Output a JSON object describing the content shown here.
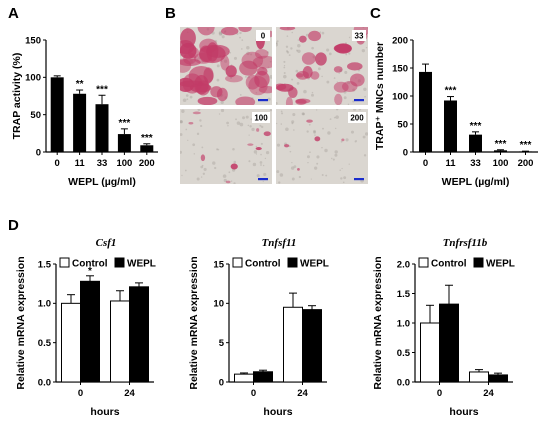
{
  "panels": {
    "A": "A",
    "B": "B",
    "C": "C",
    "D": "D"
  },
  "colors": {
    "bar_black": "#000000",
    "bar_white": "#ffffff",
    "scale_bar": "#1a2ccc",
    "stain_pink": "#c23b67",
    "stain_bg": "#dad6d0"
  },
  "micrographs": [
    {
      "label": "0",
      "density": "high"
    },
    {
      "label": "33",
      "density": "medium"
    },
    {
      "label": "100",
      "density": "low"
    },
    {
      "label": "200",
      "density": "very-low"
    }
  ],
  "legend": {
    "control": "Control",
    "wepl": "WEPL"
  },
  "chart_data": [
    {
      "panel": "A",
      "type": "bar",
      "categories": [
        "0",
        "11",
        "33",
        "100",
        "200"
      ],
      "values": [
        100,
        78,
        64,
        24,
        9
      ],
      "errors": [
        2,
        5,
        12,
        7,
        2
      ],
      "annotations": [
        "",
        "**",
        "***",
        "***",
        "***"
      ],
      "xlabel": "WEPL (µg/ml)",
      "ylabel": "TRAP activity (%)",
      "ylim": [
        0,
        150
      ],
      "yticks": [
        0,
        50,
        100,
        150
      ],
      "grid": false
    },
    {
      "panel": "C",
      "type": "bar",
      "categories": [
        "0",
        "11",
        "33",
        "100",
        "200"
      ],
      "values": [
        143,
        92,
        31,
        3,
        1
      ],
      "errors": [
        14,
        7,
        5,
        1,
        0.5
      ],
      "annotations": [
        "",
        "***",
        "***",
        "***",
        "***"
      ],
      "xlabel": "WEPL (µg/ml)",
      "ylabel": "TRAP⁺ MNCs number",
      "ylim": [
        0,
        200
      ],
      "yticks": [
        0,
        50,
        100,
        150,
        200
      ],
      "grid": false
    },
    {
      "panel": "D1",
      "type": "bar",
      "title": "Csf1",
      "categories": [
        "0",
        "24"
      ],
      "series": [
        {
          "name": "Control",
          "values": [
            1.0,
            1.03
          ],
          "errors": [
            0.11,
            0.13
          ]
        },
        {
          "name": "WEPL",
          "values": [
            1.28,
            1.21
          ],
          "errors": [
            0.07,
            0.05
          ]
        }
      ],
      "annotations": [
        {
          "category": "0",
          "series": "WEPL",
          "text": "*"
        }
      ],
      "xlabel": "hours",
      "ylabel": "Relative mRNA expression",
      "ylim": [
        0,
        1.5
      ],
      "yticks": [
        "0.0",
        "0.5",
        "1.0",
        "1.5"
      ],
      "legend_position": "top-left",
      "grid": false
    },
    {
      "panel": "D2",
      "type": "bar",
      "title": "Tnfsf11",
      "categories": [
        "0",
        "24"
      ],
      "series": [
        {
          "name": "Control",
          "values": [
            1.0,
            9.5
          ],
          "errors": [
            0.15,
            1.8
          ]
        },
        {
          "name": "WEPL",
          "values": [
            1.3,
            9.2
          ],
          "errors": [
            0.2,
            0.5
          ]
        }
      ],
      "xlabel": "hours",
      "ylabel": "Relative mRNA expression",
      "ylim": [
        0,
        15
      ],
      "yticks": [
        "0",
        "5",
        "10",
        "15"
      ],
      "legend_position": "top-left",
      "grid": false
    },
    {
      "panel": "D3",
      "type": "bar",
      "title": "Tnfrsf11b",
      "categories": [
        "0",
        "24"
      ],
      "series": [
        {
          "name": "Control",
          "values": [
            1.0,
            0.17
          ],
          "errors": [
            0.3,
            0.04
          ]
        },
        {
          "name": "WEPL",
          "values": [
            1.32,
            0.12
          ],
          "errors": [
            0.32,
            0.03
          ]
        }
      ],
      "xlabel": "hours",
      "ylabel": "Relative mRNA expression",
      "ylim": [
        0,
        2.0
      ],
      "yticks": [
        "0.0",
        "0.5",
        "1.0",
        "1.5",
        "2.0"
      ],
      "legend_position": "top-left",
      "grid": false
    }
  ]
}
